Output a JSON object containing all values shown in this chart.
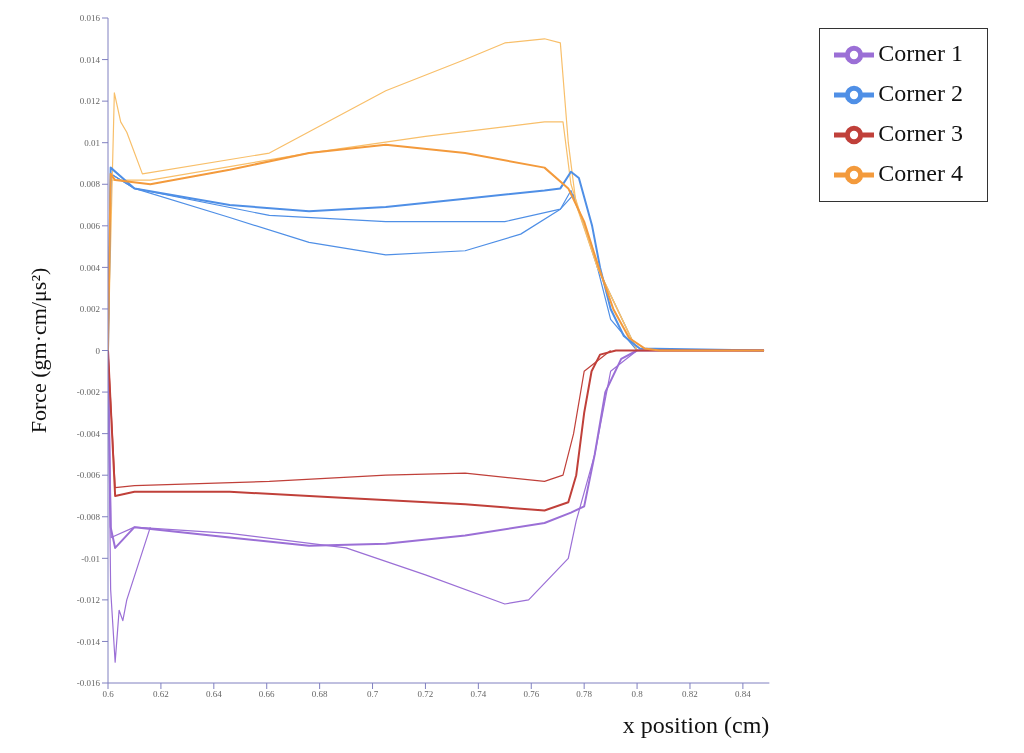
{
  "chart_data": {
    "type": "line",
    "xlabel": "x position (cm)",
    "ylabel": "Force (gm·cm/μs²)",
    "xlim": [
      0.6,
      0.85
    ],
    "xticks": [
      0.6,
      0.62,
      0.64,
      0.66,
      0.68,
      0.7,
      0.72,
      0.74,
      0.76,
      0.78,
      0.8,
      0.82,
      0.84
    ],
    "ylim": [
      -0.016,
      0.016
    ],
    "yticks": [
      -0.016,
      -0.014,
      -0.012,
      -0.01,
      -0.008,
      -0.006,
      -0.004,
      -0.002,
      0,
      0.002,
      0.004,
      0.006,
      0.008,
      0.01,
      0.012,
      0.014,
      0.016
    ],
    "grid": false,
    "legend": "top right",
    "marker": "none",
    "line_style": "solid",
    "series": [
      {
        "name": "Corner 1",
        "color": "#9b6fd6",
        "x": [
          0.6,
          0.601,
          0.6027,
          0.61,
          0.646,
          0.676,
          0.705,
          0.735,
          0.765,
          0.775,
          0.78,
          0.784,
          0.788,
          0.794,
          0.8,
          0.848
        ],
        "values": [
          0,
          -0.0085,
          -0.0095,
          -0.0085,
          -0.009,
          -0.0094,
          -0.0093,
          -0.0089,
          -0.0083,
          -0.0078,
          -0.0075,
          -0.005,
          -0.002,
          -0.0004,
          0,
          0
        ]
      },
      {
        "color": "#9b6fd6",
        "x": [
          0.6,
          0.601,
          0.6027,
          0.6042,
          0.6056,
          0.6071,
          0.616
        ],
        "values": [
          0,
          -0.0115,
          -0.015,
          -0.0125,
          -0.013,
          -0.012,
          -0.0085
        ]
      },
      {
        "color": "#9b6fd6",
        "x": [
          0.6,
          0.6012,
          0.61,
          0.646,
          0.69,
          0.72,
          0.75,
          0.759,
          0.774,
          0.777,
          0.784,
          0.79,
          0.8
        ],
        "values": [
          0,
          -0.009,
          -0.0085,
          -0.0088,
          -0.0095,
          -0.0108,
          -0.0122,
          -0.012,
          -0.01,
          -0.0082,
          -0.005,
          -0.001,
          0
        ]
      },
      {
        "name": "Corner 2",
        "color": "#4f8fe6",
        "x": [
          0.6,
          0.601,
          0.61,
          0.646,
          0.676,
          0.705,
          0.735,
          0.765,
          0.771,
          0.775,
          0.778,
          0.783,
          0.786,
          0.79,
          0.795,
          0.801,
          0.848
        ],
        "values": [
          0,
          0.0088,
          0.0078,
          0.007,
          0.0067,
          0.0069,
          0.0073,
          0.0077,
          0.0078,
          0.0086,
          0.0083,
          0.006,
          0.004,
          0.002,
          0.0007,
          0.0001,
          0
        ]
      },
      {
        "color": "#4f8fe6",
        "x": [
          0.6,
          0.601,
          0.61,
          0.646,
          0.676,
          0.705,
          0.735,
          0.756,
          0.771,
          0.775,
          0.783,
          0.79,
          0.8
        ],
        "values": [
          0,
          0.0085,
          0.0078,
          0.0064,
          0.0052,
          0.0046,
          0.0048,
          0.0056,
          0.0068,
          0.0077,
          0.005,
          0.0015,
          0
        ]
      },
      {
        "color": "#4f8fe6",
        "x": [
          0.6,
          0.601,
          0.61,
          0.661,
          0.705,
          0.75,
          0.771,
          0.776,
          0.785,
          0.8
        ],
        "values": [
          0,
          0.0085,
          0.0078,
          0.0065,
          0.0062,
          0.0062,
          0.0068,
          0.0075,
          0.004,
          0
        ]
      },
      {
        "name": "Corner 3",
        "color": "#c0403a",
        "x": [
          0.6,
          0.6027,
          0.61,
          0.646,
          0.69,
          0.735,
          0.765,
          0.774,
          0.777,
          0.78,
          0.7828,
          0.786,
          0.792,
          0.848
        ],
        "values": [
          0,
          -0.007,
          -0.0068,
          -0.0068,
          -0.0071,
          -0.0074,
          -0.0077,
          -0.0073,
          -0.006,
          -0.003,
          -0.001,
          -0.0002,
          0,
          0
        ]
      },
      {
        "color": "#c0403a",
        "x": [
          0.6,
          0.6027,
          0.61,
          0.661,
          0.705,
          0.735,
          0.765,
          0.772,
          0.776,
          0.78,
          0.79
        ],
        "values": [
          0,
          -0.0066,
          -0.0065,
          -0.0063,
          -0.006,
          -0.0059,
          -0.0063,
          -0.006,
          -0.004,
          -0.001,
          0
        ]
      },
      {
        "name": "Corner 4",
        "color": "#f39a3c",
        "x": [
          0.6,
          0.601,
          0.6027,
          0.616,
          0.646,
          0.676,
          0.705,
          0.735,
          0.765,
          0.774,
          0.78,
          0.7855,
          0.791,
          0.797,
          0.8028,
          0.8085,
          0.848
        ],
        "values": [
          0,
          0.0085,
          0.0082,
          0.008,
          0.0087,
          0.0095,
          0.0099,
          0.0095,
          0.0088,
          0.0078,
          0.0062,
          0.004,
          0.002,
          0.0006,
          0.0001,
          0,
          0
        ]
      },
      {
        "color": "#f8bf6a",
        "x": [
          0.6,
          0.6024,
          0.6048,
          0.6071,
          0.613,
          0.661,
          0.705,
          0.735,
          0.75,
          0.765,
          0.771,
          0.774,
          0.777,
          0.785,
          0.8
        ],
        "values": [
          0,
          0.0124,
          0.011,
          0.0105,
          0.0085,
          0.0095,
          0.0125,
          0.014,
          0.0148,
          0.015,
          0.0148,
          0.01,
          0.007,
          0.004,
          0
        ]
      },
      {
        "color": "#f8bf6a",
        "x": [
          0.6,
          0.601,
          0.616,
          0.676,
          0.72,
          0.765,
          0.772,
          0.775,
          0.785,
          0.8
        ],
        "values": [
          0,
          0.0082,
          0.0082,
          0.0095,
          0.0103,
          0.011,
          0.011,
          0.008,
          0.004,
          0
        ]
      }
    ]
  }
}
